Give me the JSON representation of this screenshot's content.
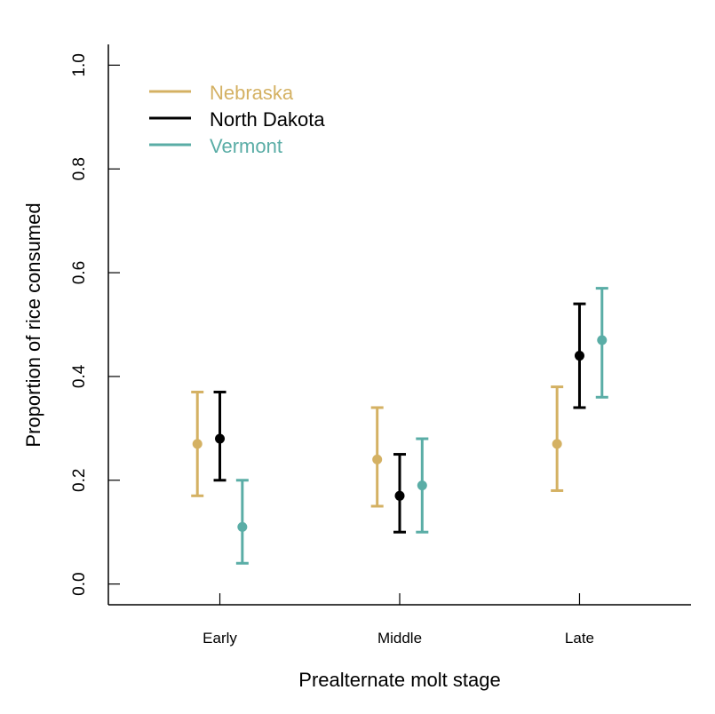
{
  "chart_data": {
    "type": "scatter",
    "subtype": "point-with-error-bars",
    "title": "",
    "xlabel": "Prealternate molt stage",
    "ylabel": "Proportion of rice consumed",
    "categories": [
      "Early",
      "Middle",
      "Late"
    ],
    "xlim": [
      0.38,
      3.62
    ],
    "ylim": [
      -0.04,
      1.04
    ],
    "yticks": [
      0.0,
      0.2,
      0.4,
      0.6,
      0.8,
      1.0
    ],
    "ytick_labels": [
      "0.0",
      "0.2",
      "0.4",
      "0.6",
      "0.8",
      "1.0"
    ],
    "grid": false,
    "legend_position": "top-left",
    "series": [
      {
        "name": "Nebraska",
        "color": "#D4B163",
        "offset": -0.125,
        "values": [
          0.27,
          0.24,
          0.27
        ],
        "lower": [
          0.17,
          0.15,
          0.18
        ],
        "upper": [
          0.37,
          0.34,
          0.38
        ]
      },
      {
        "name": "North Dakota",
        "color": "#000000",
        "offset": 0,
        "values": [
          0.28,
          0.17,
          0.44
        ],
        "lower": [
          0.2,
          0.1,
          0.34
        ],
        "upper": [
          0.37,
          0.25,
          0.54
        ]
      },
      {
        "name": "Vermont",
        "color": "#5AADA6",
        "offset": 0.125,
        "values": [
          0.11,
          0.19,
          0.47
        ],
        "lower": [
          0.04,
          0.1,
          0.36
        ],
        "upper": [
          0.2,
          0.28,
          0.57
        ]
      }
    ]
  }
}
